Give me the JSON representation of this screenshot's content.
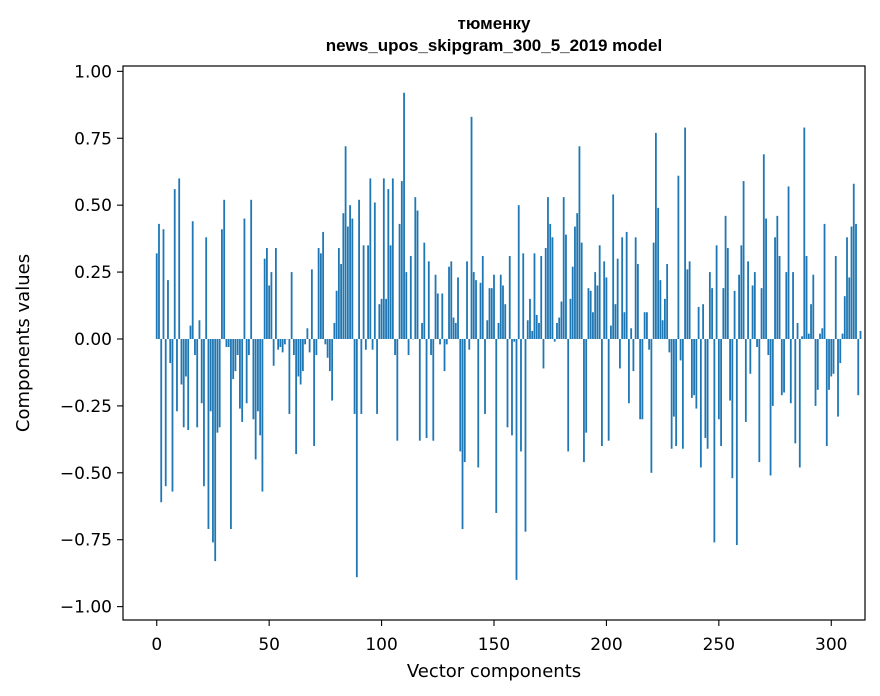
{
  "chart_data": {
    "type": "bar",
    "title_lines": [
      "тюменку",
      "news_upos_skipgram_300_5_2019 model"
    ],
    "xlabel": "Vector components",
    "ylabel": "Components values",
    "xlim": [
      -15,
      315
    ],
    "ylim": [
      -1.05,
      1.02
    ],
    "xticks": [
      0,
      50,
      100,
      150,
      200,
      250,
      300
    ],
    "xtick_labels": [
      "0",
      "50",
      "100",
      "150",
      "200",
      "250",
      "300"
    ],
    "yticks": [
      1.0,
      0.75,
      0.5,
      0.25,
      0.0,
      -0.25,
      -0.5,
      -0.75,
      -1.0
    ],
    "ytick_labels": [
      "1.00",
      "0.75",
      "0.50",
      "0.25",
      "0.00",
      "−0.25",
      "−0.50",
      "−0.75",
      "−1.00"
    ],
    "bar_color": "#1f77b4",
    "bar_width": 0.8,
    "values": [
      0.32,
      0.43,
      -0.61,
      0.41,
      -0.55,
      0.22,
      -0.09,
      -0.57,
      0.56,
      -0.27,
      0.6,
      -0.17,
      -0.33,
      -0.14,
      -0.34,
      0.05,
      0.44,
      -0.06,
      -0.33,
      0.07,
      -0.24,
      -0.55,
      0.38,
      -0.71,
      -0.27,
      -0.76,
      -0.83,
      -0.35,
      -0.33,
      0.41,
      0.52,
      -0.03,
      -0.03,
      -0.71,
      -0.15,
      -0.12,
      -0.06,
      -0.26,
      -0.31,
      0.45,
      -0.24,
      -0.06,
      0.52,
      -0.3,
      -0.45,
      -0.27,
      -0.36,
      -0.57,
      0.3,
      0.34,
      0.2,
      0.25,
      -0.1,
      0.34,
      -0.04,
      -0.03,
      -0.05,
      -0.02,
      0.0,
      -0.28,
      0.25,
      -0.06,
      -0.43,
      -0.14,
      -0.17,
      -0.12,
      -0.02,
      0.04,
      -0.05,
      0.26,
      -0.4,
      -0.06,
      0.34,
      0.32,
      0.4,
      -0.02,
      -0.07,
      -0.12,
      -0.23,
      0.06,
      0.18,
      0.34,
      0.28,
      0.47,
      0.72,
      0.42,
      0.5,
      0.45,
      -0.28,
      -0.89,
      0.52,
      -0.28,
      0.35,
      -0.04,
      0.35,
      0.6,
      -0.04,
      0.51,
      -0.28,
      0.13,
      0.15,
      0.6,
      0.15,
      0.56,
      0.35,
      0.6,
      -0.06,
      -0.38,
      0.43,
      0.59,
      0.92,
      0.25,
      -0.06,
      0.31,
      0.0,
      0.53,
      0.48,
      -0.38,
      0.06,
      0.36,
      -0.37,
      0.29,
      -0.06,
      -0.38,
      0.24,
      0.17,
      -0.02,
      0.17,
      -0.12,
      -0.02,
      0.27,
      0.29,
      0.08,
      0.06,
      0.23,
      -0.42,
      -0.71,
      -0.46,
      0.29,
      -0.04,
      0.83,
      0.25,
      0.22,
      -0.48,
      0.21,
      0.31,
      -0.28,
      0.07,
      0.19,
      0.19,
      0.24,
      -0.65,
      0.06,
      0.24,
      0.2,
      0.13,
      -0.33,
      0.31,
      -0.36,
      -0.01,
      -0.9,
      0.5,
      -0.42,
      0.32,
      -0.72,
      0.07,
      0.15,
      0.03,
      0.32,
      0.09,
      0.06,
      0.31,
      -0.11,
      0.34,
      0.53,
      0.43,
      0.38,
      -0.01,
      0.06,
      0.08,
      0.14,
      0.53,
      0.39,
      -0.42,
      0.15,
      0.27,
      0.42,
      0.47,
      0.72,
      0.36,
      -0.46,
      -0.35,
      0.19,
      0.18,
      0.1,
      0.25,
      0.2,
      0.35,
      -0.4,
      0.29,
      0.23,
      -0.38,
      0.05,
      0.54,
      0.13,
      0.3,
      -0.11,
      0.38,
      0.1,
      0.4,
      -0.24,
      0.04,
      -0.12,
      0.38,
      0.28,
      -0.3,
      -0.3,
      0.1,
      0.1,
      -0.04,
      -0.5,
      0.36,
      0.77,
      0.49,
      0.22,
      0.07,
      0.15,
      0.28,
      -0.05,
      -0.41,
      -0.29,
      -0.4,
      0.61,
      -0.08,
      -0.41,
      0.79,
      0.26,
      0.29,
      -0.22,
      -0.21,
      -0.26,
      0.12,
      -0.48,
      0.13,
      -0.37,
      -0.41,
      0.25,
      0.19,
      -0.76,
      0.35,
      -0.3,
      -0.4,
      0.19,
      0.46,
      0.34,
      -0.23,
      -0.52,
      0.18,
      -0.77,
      0.24,
      0.35,
      0.59,
      -0.31,
      0.29,
      -0.13,
      0.2,
      0.25,
      -0.03,
      -0.46,
      0.19,
      0.69,
      0.45,
      -0.06,
      -0.51,
      -0.25,
      0.38,
      0.46,
      0.31,
      -0.21,
      -0.2,
      0.25,
      0.57,
      -0.24,
      0.25,
      -0.39,
      0.06,
      -0.48,
      0.01,
      0.79,
      0.31,
      0.02,
      0.13,
      0.24,
      -0.25,
      -0.19,
      0.02,
      0.04,
      0.43,
      -0.4,
      -0.19,
      -0.14,
      -0.13,
      0.31,
      -0.29,
      -0.09,
      0.02,
      0.16,
      0.38,
      0.23,
      0.42,
      0.58,
      0.43,
      -0.21,
      0.03
    ]
  }
}
